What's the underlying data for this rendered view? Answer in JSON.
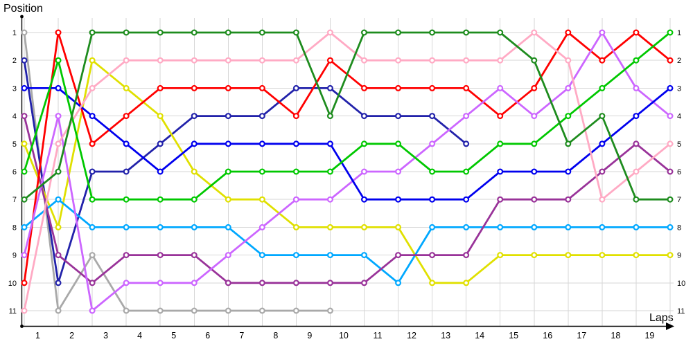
{
  "chart_data": {
    "type": "line",
    "subtype": "race-position-bump-chart",
    "ylabel": "Position",
    "xlabel": "Laps",
    "x_ticks": [
      1,
      2,
      3,
      4,
      5,
      6,
      7,
      8,
      9,
      10,
      11,
      12,
      13,
      14,
      15,
      16,
      17,
      18,
      19
    ],
    "y_ticks_left": [
      1,
      2,
      3,
      4,
      5,
      6,
      7,
      8,
      9,
      10,
      11
    ],
    "y_ticks_right": [
      1,
      2,
      3,
      4,
      5,
      6,
      7,
      8,
      9,
      10,
      11
    ],
    "y_axis_inverted": "position 1 at top",
    "points_per_full_series": 20,
    "x_columns_note": "20 samples per series, one between each pair of lap ticks; shorter series retired from race",
    "grid": true,
    "legend": "none",
    "background": "#FFFFFF",
    "grid_color": "#D6D6D6",
    "axis_color": "#000000",
    "marker": {
      "shape": "circle",
      "fill": "#FFFFFF"
    },
    "layering": "series listed bottom-to-top draw order",
    "series": [
      {
        "name": "gray",
        "color": "#A9A9A9",
        "values": [
          1,
          11,
          9,
          11,
          11,
          11,
          11,
          11,
          11,
          11
        ]
      },
      {
        "name": "navy",
        "color": "#2222AA",
        "values": [
          2,
          10,
          6,
          6,
          5,
          4,
          4,
          4,
          3,
          3,
          4,
          4,
          4,
          5
        ]
      },
      {
        "name": "yellow",
        "color": "#E0E000",
        "values": [
          5,
          8,
          2,
          3,
          4,
          6,
          7,
          7,
          8,
          8,
          8,
          8,
          10,
          10,
          9,
          9,
          9,
          9,
          9,
          9
        ]
      },
      {
        "name": "sky-blue",
        "color": "#00A8FF",
        "values": [
          8,
          7,
          8,
          8,
          8,
          8,
          8,
          9,
          9,
          9,
          9,
          10,
          8,
          8,
          8,
          8,
          8,
          8,
          8,
          8
        ]
      },
      {
        "name": "purple",
        "color": "#993399",
        "values": [
          4,
          9,
          10,
          9,
          9,
          9,
          10,
          10,
          10,
          10,
          10,
          9,
          9,
          9,
          7,
          7,
          7,
          6,
          5,
          6
        ]
      },
      {
        "name": "red",
        "color": "#FF0000",
        "values": [
          10,
          1,
          5,
          4,
          3,
          3,
          3,
          3,
          4,
          2,
          3,
          3,
          3,
          3,
          4,
          3,
          1,
          2,
          1,
          2
        ]
      },
      {
        "name": "violet",
        "color": "#CC66FF",
        "values": [
          9,
          4,
          11,
          10,
          10,
          10,
          9,
          8,
          7,
          7,
          6,
          6,
          5,
          4,
          3,
          4,
          3,
          1,
          3,
          4
        ]
      },
      {
        "name": "blue",
        "color": "#0000EE",
        "values": [
          3,
          3,
          4,
          5,
          6,
          5,
          5,
          5,
          5,
          5,
          7,
          7,
          7,
          7,
          6,
          6,
          6,
          5,
          4,
          3
        ]
      },
      {
        "name": "pink",
        "color": "#FFAAC4",
        "values": [
          11,
          5,
          3,
          2,
          2,
          2,
          2,
          2,
          2,
          1,
          2,
          2,
          2,
          2,
          2,
          1,
          2,
          7,
          6,
          5
        ]
      },
      {
        "name": "green",
        "color": "#00C800",
        "values": [
          6,
          2,
          7,
          7,
          7,
          7,
          6,
          6,
          6,
          6,
          5,
          5,
          6,
          6,
          5,
          5,
          4,
          3,
          2,
          1
        ]
      },
      {
        "name": "dark-green",
        "color": "#1E8C1E",
        "values": [
          7,
          6,
          1,
          1,
          1,
          1,
          1,
          1,
          1,
          4,
          1,
          1,
          1,
          1,
          1,
          2,
          5,
          4,
          7,
          7
        ]
      }
    ]
  }
}
